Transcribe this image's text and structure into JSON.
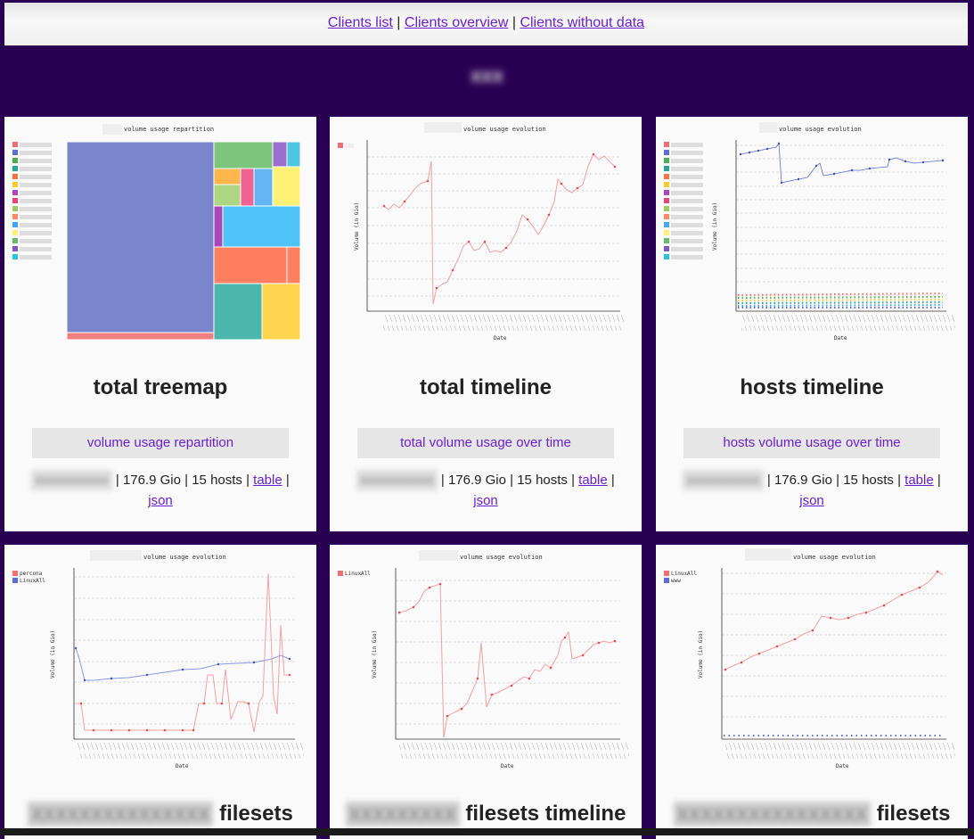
{
  "nav": {
    "links": [
      "Clients list",
      "Clients overview",
      "Clients without data"
    ],
    "separator": "|"
  },
  "client_name": "xxx",
  "cards": [
    {
      "graph_title_suffix": "volume usage repartition",
      "title": "total treemap",
      "desc": "volume usage repartition",
      "meta_prefix": "xxxxxxxxxxx",
      "meta_volume": "176.9 Gio",
      "meta_hosts": "15 hosts",
      "table": "table",
      "json": "json"
    },
    {
      "graph_title_suffix": "volume usage evolution",
      "title": "total timeline",
      "desc": "total volume usage over time",
      "meta_prefix": "xxxxxxxxxxx",
      "meta_volume": "176.9 Gio",
      "meta_hosts": "15 hosts",
      "table": "table",
      "json": "json"
    },
    {
      "graph_title_suffix": "volume usage evolution",
      "title": "hosts timeline",
      "desc": "hosts volume usage over time",
      "meta_prefix": "xxxxxxxxxxx",
      "meta_volume": "176.9 Gio",
      "meta_hosts": "15 hosts",
      "table": "table",
      "json": "json"
    },
    {
      "graph_title_suffix": "volume usage evolution",
      "title_suffix": "filesets",
      "legend": [
        "percona",
        "LinuxAll"
      ]
    },
    {
      "graph_title_suffix": "volume usage evolution",
      "title_suffix": "filesets timeline",
      "legend": [
        "LinuxAll"
      ]
    },
    {
      "graph_title_suffix": "volume usage evolution",
      "title_suffix": "filesets",
      "legend": [
        "LinuxAll",
        "www"
      ]
    }
  ],
  "axis": {
    "xlabel": "Date",
    "ylabel": "Volume (in Gio)"
  },
  "colors": {
    "red": "#f07070",
    "blue": "#5b6fd0",
    "accent": "#6a1fd0",
    "bg": "#2a0052"
  }
}
